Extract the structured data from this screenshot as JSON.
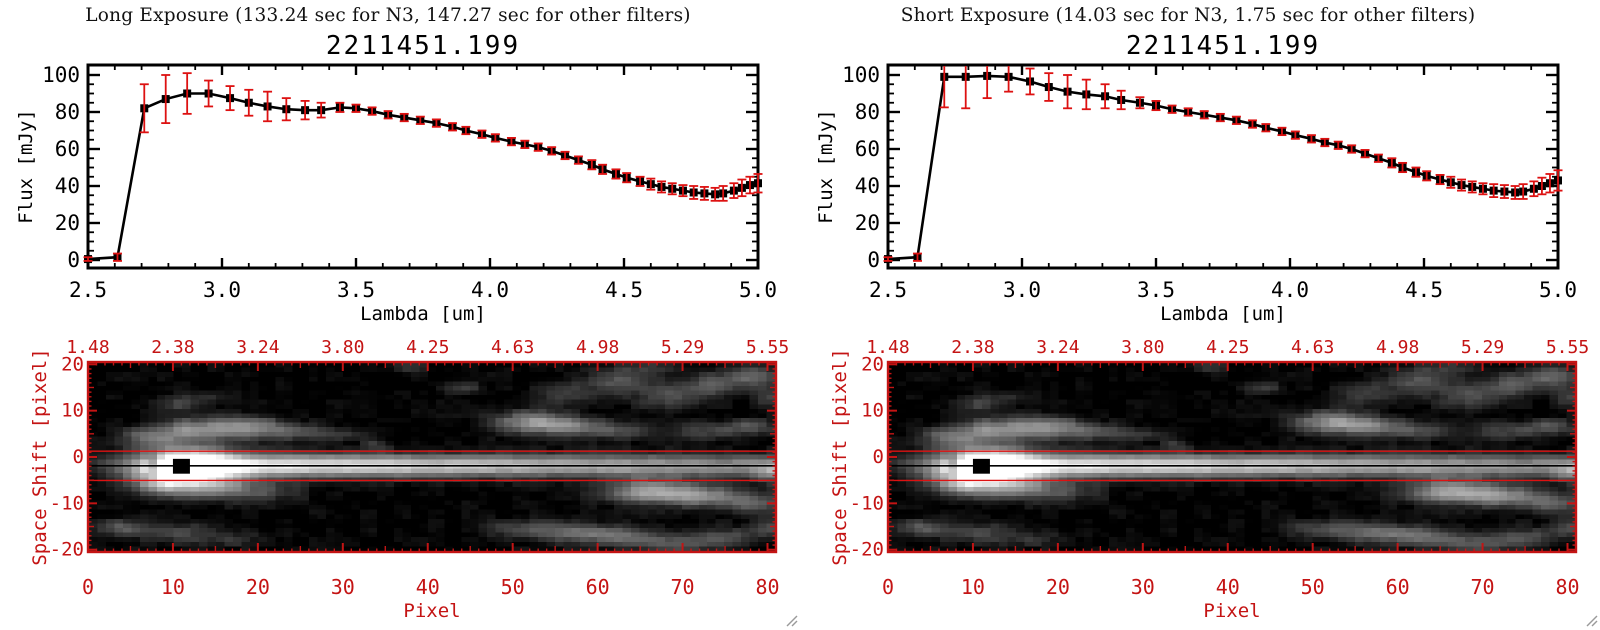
{
  "colors": {
    "background": "#ffffff",
    "plot_black": "#000000",
    "error_red": "#dd1111",
    "image_axis_red": "#c41414",
    "grip_gray": "#9a9a9a"
  },
  "panels": [
    {
      "title": "Long Exposure (133.24 sec for N3, 147.27 sec for other filters)",
      "object_id": "2211451.199",
      "spectrum_chart": 0
    },
    {
      "title": "Short Exposure (14.03 sec for N3, 1.75 sec for other filters)",
      "object_id": "2211451.199",
      "spectrum_chart": 1
    }
  ],
  "chart_data": [
    {
      "type": "line",
      "title": "2211451.199",
      "panel": "Long Exposure",
      "xlabel": "Lambda [um]",
      "ylabel": "Flux [mJy]",
      "xlim": [
        2.5,
        5.0
      ],
      "ylim": [
        0,
        100
      ],
      "x_tick_values": [
        2.5,
        3.0,
        3.5,
        4.0,
        4.5,
        5.0
      ],
      "x_tick_labels": [
        "2.5",
        "3.0",
        "3.5",
        "4.0",
        "4.5",
        "5.0"
      ],
      "y_tick_values": [
        0,
        20,
        40,
        60,
        80,
        100
      ],
      "y_tick_labels": [
        "0",
        "20",
        "40",
        "60",
        "80",
        "100"
      ],
      "marker": "filled-square",
      "line_color": "#000000",
      "error_color": "#dd1111",
      "x": [
        2.5,
        2.61,
        2.71,
        2.79,
        2.87,
        2.95,
        3.03,
        3.1,
        3.17,
        3.24,
        3.31,
        3.37,
        3.44,
        3.5,
        3.56,
        3.62,
        3.68,
        3.74,
        3.8,
        3.86,
        3.91,
        3.97,
        4.02,
        4.08,
        4.13,
        4.18,
        4.23,
        4.28,
        4.33,
        4.38,
        4.42,
        4.47,
        4.51,
        4.56,
        4.6,
        4.64,
        4.68,
        4.72,
        4.76,
        4.8,
        4.84,
        4.87,
        4.91,
        4.94,
        4.97,
        5.0
      ],
      "y": [
        0.5,
        1.5,
        82,
        87,
        90,
        90,
        87.5,
        85,
        83,
        81.5,
        81,
        81,
        82.5,
        82,
        80.5,
        78.5,
        77,
        75.5,
        74,
        72,
        70,
        68,
        66,
        64,
        62.5,
        61,
        59,
        56.5,
        54,
        51.5,
        49,
        46.5,
        44.5,
        42.5,
        41,
        39.5,
        38.5,
        37.5,
        36.5,
        36,
        35.5,
        36,
        37.5,
        39,
        40.5,
        41.5
      ],
      "yerr": [
        1,
        2,
        13,
        13,
        11,
        7,
        6.5,
        7,
        8,
        6,
        5,
        4,
        2.5,
        2,
        2,
        2,
        2,
        2,
        2,
        2,
        2,
        2,
        2,
        2,
        2,
        2,
        2,
        2,
        2,
        2.5,
        2.5,
        2.5,
        2.5,
        2.5,
        3,
        3,
        3,
        3,
        3.5,
        3.5,
        3.5,
        4,
        4,
        4.5,
        4.5,
        5
      ]
    },
    {
      "type": "line",
      "title": "2211451.199",
      "panel": "Short Exposure",
      "xlabel": "Lambda [um]",
      "ylabel": "Flux [mJy]",
      "xlim": [
        2.5,
        5.0
      ],
      "ylim": [
        0,
        100
      ],
      "x_tick_values": [
        2.5,
        3.0,
        3.5,
        4.0,
        4.5,
        5.0
      ],
      "x_tick_labels": [
        "2.5",
        "3.0",
        "3.5",
        "4.0",
        "4.5",
        "5.0"
      ],
      "y_tick_values": [
        0,
        20,
        40,
        60,
        80,
        100
      ],
      "y_tick_labels": [
        "0",
        "20",
        "40",
        "60",
        "80",
        "100"
      ],
      "marker": "filled-square",
      "line_color": "#000000",
      "error_color": "#dd1111",
      "x": [
        2.5,
        2.61,
        2.71,
        2.79,
        2.87,
        2.95,
        3.03,
        3.1,
        3.17,
        3.24,
        3.31,
        3.37,
        3.44,
        3.5,
        3.56,
        3.62,
        3.68,
        3.74,
        3.8,
        3.86,
        3.91,
        3.97,
        4.02,
        4.08,
        4.13,
        4.18,
        4.23,
        4.28,
        4.33,
        4.38,
        4.42,
        4.47,
        4.51,
        4.56,
        4.6,
        4.64,
        4.68,
        4.72,
        4.76,
        4.8,
        4.84,
        4.87,
        4.91,
        4.94,
        4.97,
        5.0
      ],
      "y": [
        0.5,
        1.5,
        99,
        99,
        99.5,
        99,
        96.5,
        93.5,
        91,
        89.5,
        88.5,
        86.5,
        85,
        83.5,
        81.5,
        80,
        78.5,
        77,
        75.5,
        73.5,
        71.5,
        69.5,
        67.5,
        65.5,
        63.5,
        62,
        60,
        57.5,
        55,
        52.5,
        50,
        47.5,
        45.5,
        43.5,
        42,
        40.5,
        39.5,
        38.5,
        37.5,
        37,
        36.5,
        37,
        38.5,
        40,
        41.5,
        43
      ],
      "yerr": [
        1,
        2,
        16.5,
        17,
        12,
        8,
        7,
        7.5,
        9,
        8,
        6.5,
        5,
        3,
        2.5,
        2,
        2,
        2,
        2,
        2,
        2,
        2,
        2,
        2,
        2,
        2,
        2,
        2,
        2,
        2,
        2.5,
        2.5,
        2.5,
        2.5,
        2.5,
        3,
        3,
        3,
        3,
        3.5,
        3.5,
        3.5,
        4,
        4,
        4.5,
        5,
        5.5
      ]
    },
    {
      "type": "heatmap",
      "xlabel": "Pixel",
      "ylabel": "Space Shift [pixel]",
      "xlim": [
        0,
        81
      ],
      "ylim": [
        -20.5,
        20.5
      ],
      "x_tick_values": [
        0,
        10,
        20,
        30,
        40,
        50,
        60,
        70,
        80
      ],
      "x_tick_labels": [
        "0",
        "10",
        "20",
        "30",
        "40",
        "50",
        "60",
        "70",
        "80"
      ],
      "top_tick_labels": [
        "1.48",
        "2.38",
        "3.24",
        "3.80",
        "4.25",
        "4.63",
        "4.98",
        "5.29",
        "5.55"
      ],
      "y_tick_values": [
        20,
        10,
        0,
        -10,
        -20
      ],
      "y_tick_labels": [
        "20",
        "10",
        "0",
        "-10",
        "-20"
      ],
      "axis_color": "#c41414",
      "overlay": {
        "aperture_line_color": "#dd1111",
        "trace_y": -1.9,
        "aperture_halfwidth": 3.15,
        "trace_line_color": "#000000",
        "masked_pixel": {
          "x0": 10,
          "x1": 12,
          "y0": -3.6,
          "y1": -0.4
        }
      },
      "streak": {
        "y_center": -1.9,
        "sigma_y": 1.7,
        "x_start": 7.5,
        "core_x": 11,
        "core_glow": {
          "sigma_x": 4.2,
          "sigma_y": 3.1,
          "amp": 0.9
        }
      },
      "blobs": [
        [
          7,
          4.5,
          2.2,
          1.4,
          0.33
        ],
        [
          12,
          6,
          2.8,
          1.7,
          0.46
        ],
        [
          18.5,
          6.5,
          3.0,
          1.6,
          0.5
        ],
        [
          24.5,
          5.5,
          2.6,
          1.3,
          0.27
        ],
        [
          30,
          4.5,
          2.0,
          1.0,
          0.14
        ],
        [
          9,
          -5.5,
          2.8,
          1.9,
          0.45
        ],
        [
          15,
          -6.5,
          3.4,
          1.8,
          0.36
        ],
        [
          21,
          -7.5,
          3.0,
          1.5,
          0.2
        ],
        [
          4,
          -15.5,
          2.2,
          1.4,
          0.3
        ],
        [
          11,
          -16.5,
          3.0,
          1.5,
          0.24
        ],
        [
          17,
          -18,
          2.5,
          1.2,
          0.15
        ],
        [
          10,
          11.5,
          1.8,
          1.3,
          0.2
        ],
        [
          13.5,
          12.5,
          1.6,
          1.0,
          0.15
        ],
        [
          34,
          2.8,
          1.0,
          0.7,
          0.16
        ],
        [
          44,
          15,
          1.6,
          1.0,
          0.2
        ],
        [
          38,
          19.5,
          1.4,
          0.9,
          0.15
        ],
        [
          52.5,
          7.5,
          3.2,
          1.7,
          0.56
        ],
        [
          58,
          6.5,
          2.8,
          1.4,
          0.36
        ],
        [
          63.5,
          5.5,
          2.4,
          1.2,
          0.2
        ],
        [
          56,
          13.5,
          2.4,
          1.6,
          0.2
        ],
        [
          62,
          16.5,
          2.8,
          1.8,
          0.28
        ],
        [
          68,
          13.5,
          2.6,
          2.0,
          0.26
        ],
        [
          73.5,
          15.5,
          2.4,
          1.8,
          0.3
        ],
        [
          78.5,
          17.5,
          2.2,
          1.6,
          0.34
        ],
        [
          81,
          13,
          1.6,
          1.5,
          0.26
        ],
        [
          66,
          19.5,
          2.0,
          1.0,
          0.2
        ],
        [
          72,
          5.5,
          2.6,
          1.4,
          0.24
        ],
        [
          78,
          6.5,
          2.2,
          1.2,
          0.3
        ],
        [
          81,
          -3.5,
          1.8,
          1.6,
          0.3
        ],
        [
          66,
          -7.5,
          3.6,
          1.9,
          0.56
        ],
        [
          72.5,
          -8.5,
          3.2,
          1.7,
          0.44
        ],
        [
          78.5,
          -10,
          2.4,
          1.6,
          0.32
        ],
        [
          81,
          -15.5,
          2.0,
          1.4,
          0.3
        ],
        [
          57,
          -16.5,
          3.6,
          1.6,
          0.34
        ],
        [
          63.5,
          -17.5,
          3.4,
          1.5,
          0.3
        ],
        [
          50.5,
          -15.5,
          2.6,
          1.3,
          0.2
        ],
        [
          70,
          -19,
          3.0,
          1.3,
          0.26
        ],
        [
          75,
          -17.5,
          2.6,
          1.4,
          0.28
        ]
      ]
    }
  ]
}
